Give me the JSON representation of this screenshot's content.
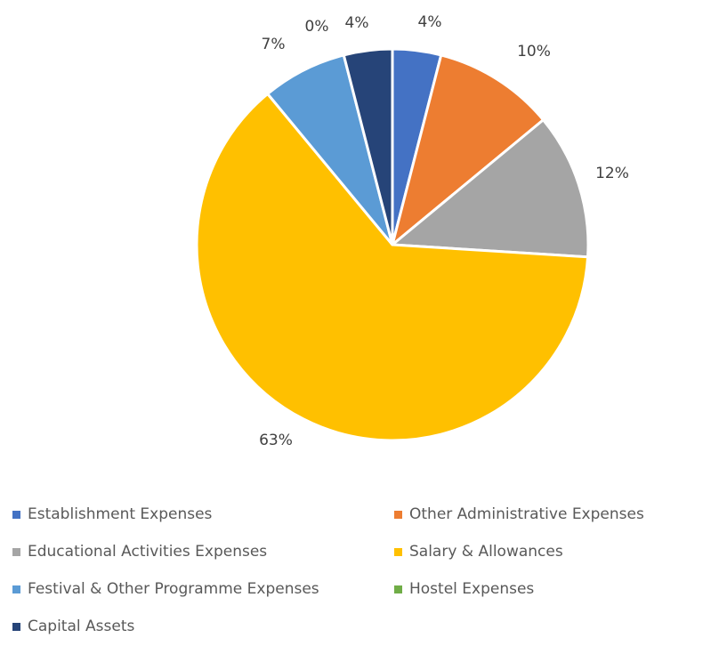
{
  "chart_data": {
    "type": "pie",
    "title": "",
    "slices": [
      {
        "label": "Establishment Expenses",
        "value": 4,
        "display": "4%",
        "color": "#4472C4"
      },
      {
        "label": "Other Administrative Expenses",
        "value": 10,
        "display": "10%",
        "color": "#ED7D31"
      },
      {
        "label": "Educational Activities Expenses",
        "value": 12,
        "display": "12%",
        "color": "#A5A5A5"
      },
      {
        "label": "Salary & Allowances",
        "value": 63,
        "display": "63%",
        "color": "#FFC000"
      },
      {
        "label": "Festival & Other Programme Expenses",
        "value": 7,
        "display": "7%",
        "color": "#5B9BD5"
      },
      {
        "label": "Hostel Expenses",
        "value": 0,
        "display": "0%",
        "color": "#70AD47"
      },
      {
        "label": "Capital Assets",
        "value": 4,
        "display": "4%",
        "color": "#264478"
      }
    ],
    "legend_position": "bottom",
    "start_angle_deg": 0,
    "direction": "clockwise"
  }
}
